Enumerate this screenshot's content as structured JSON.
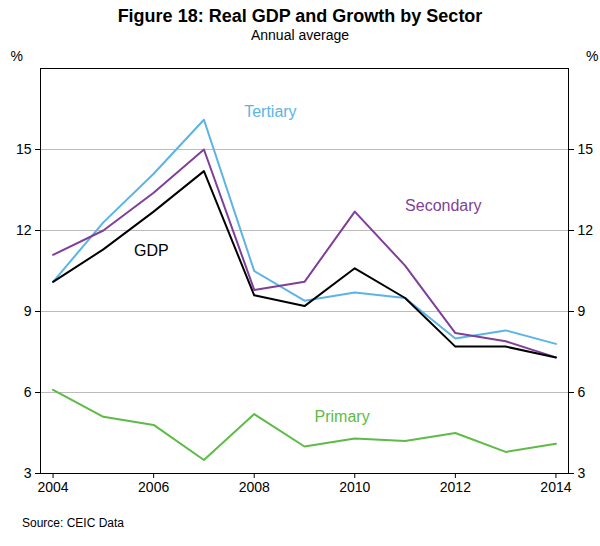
{
  "chart_data": {
    "type": "line",
    "title": "Figure 18: Real GDP and Growth by Sector",
    "subtitle": "Annual average",
    "source": "Source:      CEIC Data",
    "y_label": "%",
    "x": [
      2004,
      2005,
      2006,
      2007,
      2008,
      2009,
      2010,
      2011,
      2012,
      2013,
      2014
    ],
    "xlim": [
      2003.75,
      2014.25
    ],
    "xticks": [
      2004,
      2006,
      2008,
      2010,
      2012,
      2014
    ],
    "ylim": [
      3,
      18
    ],
    "yticks": [
      3,
      6,
      9,
      12,
      15
    ],
    "grid": true,
    "series": [
      {
        "name": "Tertiary",
        "color": "#5bb4e5",
        "values": [
          10.1,
          12.3,
          14.1,
          16.1,
          10.5,
          9.4,
          9.7,
          9.5,
          8.0,
          8.3,
          7.8
        ]
      },
      {
        "name": "Secondary",
        "color": "#7f3f98",
        "values": [
          11.1,
          12.0,
          13.4,
          15.0,
          9.8,
          10.1,
          12.7,
          10.7,
          8.2,
          7.9,
          7.3
        ]
      },
      {
        "name": "GDP",
        "color": "#000000",
        "values": [
          10.1,
          11.3,
          12.7,
          14.2,
          9.6,
          9.2,
          10.6,
          9.5,
          7.7,
          7.7,
          7.3
        ]
      },
      {
        "name": "Primary",
        "color": "#5dbb46",
        "values": [
          6.1,
          5.1,
          4.8,
          3.5,
          5.2,
          4.0,
          4.3,
          4.2,
          4.5,
          3.8,
          4.1
        ]
      }
    ]
  }
}
